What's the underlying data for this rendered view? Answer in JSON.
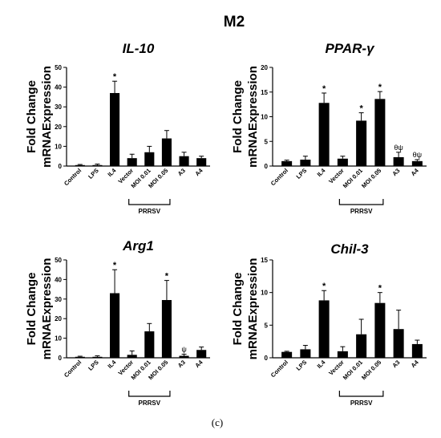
{
  "figure": {
    "title": "M2",
    "caption": "(c)"
  },
  "chart_data": [
    {
      "type": "bar",
      "title": "IL-10",
      "ylabel": [
        "Fold Change",
        "mRNAExpression"
      ],
      "ylim": [
        0,
        50
      ],
      "yticks": [
        0,
        10,
        20,
        30,
        40,
        50
      ],
      "categories": [
        "Control",
        "LPS",
        "IL4",
        "Vector",
        "MOI 0.01",
        "MOI 0.05",
        "A3",
        "A4"
      ],
      "values": [
        0.5,
        0.5,
        37,
        4,
        7,
        14,
        5,
        4
      ],
      "errors": [
        0.3,
        0.5,
        6,
        2,
        3,
        4,
        2,
        1
      ],
      "annotations": [
        "",
        "",
        "*",
        "",
        "",
        "",
        "",
        ""
      ],
      "group_label": "PRRSV",
      "group_range": [
        3,
        5
      ]
    },
    {
      "type": "bar",
      "title": "PPAR-γ",
      "ylabel": [
        "Fold Change",
        "mRNAExpression"
      ],
      "ylim": [
        0,
        20
      ],
      "yticks": [
        0,
        5,
        10,
        15,
        20
      ],
      "categories": [
        "Control",
        "LPS",
        "IL4",
        "Vector",
        "MOI 0.01",
        "MOI 0.05",
        "A3",
        "A4"
      ],
      "values": [
        1,
        1.3,
        12.8,
        1.5,
        9.2,
        13.6,
        1.8,
        1.0
      ],
      "errors": [
        0.2,
        0.7,
        2,
        0.5,
        1.6,
        1.5,
        1.0,
        0.3
      ],
      "annotations": [
        "",
        "",
        "*",
        "",
        "*",
        "*",
        "θψ",
        "θψ"
      ],
      "group_label": "PRRSV",
      "group_range": [
        3,
        5
      ]
    },
    {
      "type": "bar",
      "title": "Arg1",
      "ylabel": [
        "Fold Change",
        "mRNAExpression"
      ],
      "ylim": [
        0,
        50
      ],
      "yticks": [
        0,
        10,
        20,
        30,
        40,
        50
      ],
      "categories": [
        "Control",
        "LPS",
        "IL4",
        "Vector",
        "MOI 0.01",
        "MOI 0.05",
        "A3",
        "A4"
      ],
      "values": [
        0.5,
        0.5,
        33,
        1.5,
        13.5,
        29.5,
        1,
        4
      ],
      "errors": [
        0.3,
        0.5,
        12,
        2,
        4,
        10,
        0.8,
        1.5
      ],
      "annotations": [
        "",
        "",
        "*",
        "",
        "",
        "*",
        "ψ",
        ""
      ],
      "group_label": "PRRSV",
      "group_range": [
        3,
        5
      ]
    },
    {
      "type": "bar",
      "title": "Chil-3",
      "ylabel": [
        "Fold Change",
        "mRNAExpression"
      ],
      "ylim": [
        0,
        15
      ],
      "yticks": [
        0,
        5,
        10,
        15
      ],
      "categories": [
        "Control",
        "LPS",
        "IL4",
        "Vector",
        "MOI 0.01",
        "MOI 0.05",
        "A3",
        "A4"
      ],
      "values": [
        0.9,
        1.3,
        8.8,
        1.0,
        3.6,
        8.4,
        4.4,
        2.1
      ],
      "errors": [
        0.1,
        0.6,
        1.5,
        0.7,
        2.3,
        1.6,
        2.9,
        0.6
      ],
      "annotations": [
        "",
        "",
        "*",
        "",
        "",
        "*",
        "",
        ""
      ],
      "group_label": "PRRSV",
      "group_range": [
        3,
        5
      ]
    }
  ]
}
